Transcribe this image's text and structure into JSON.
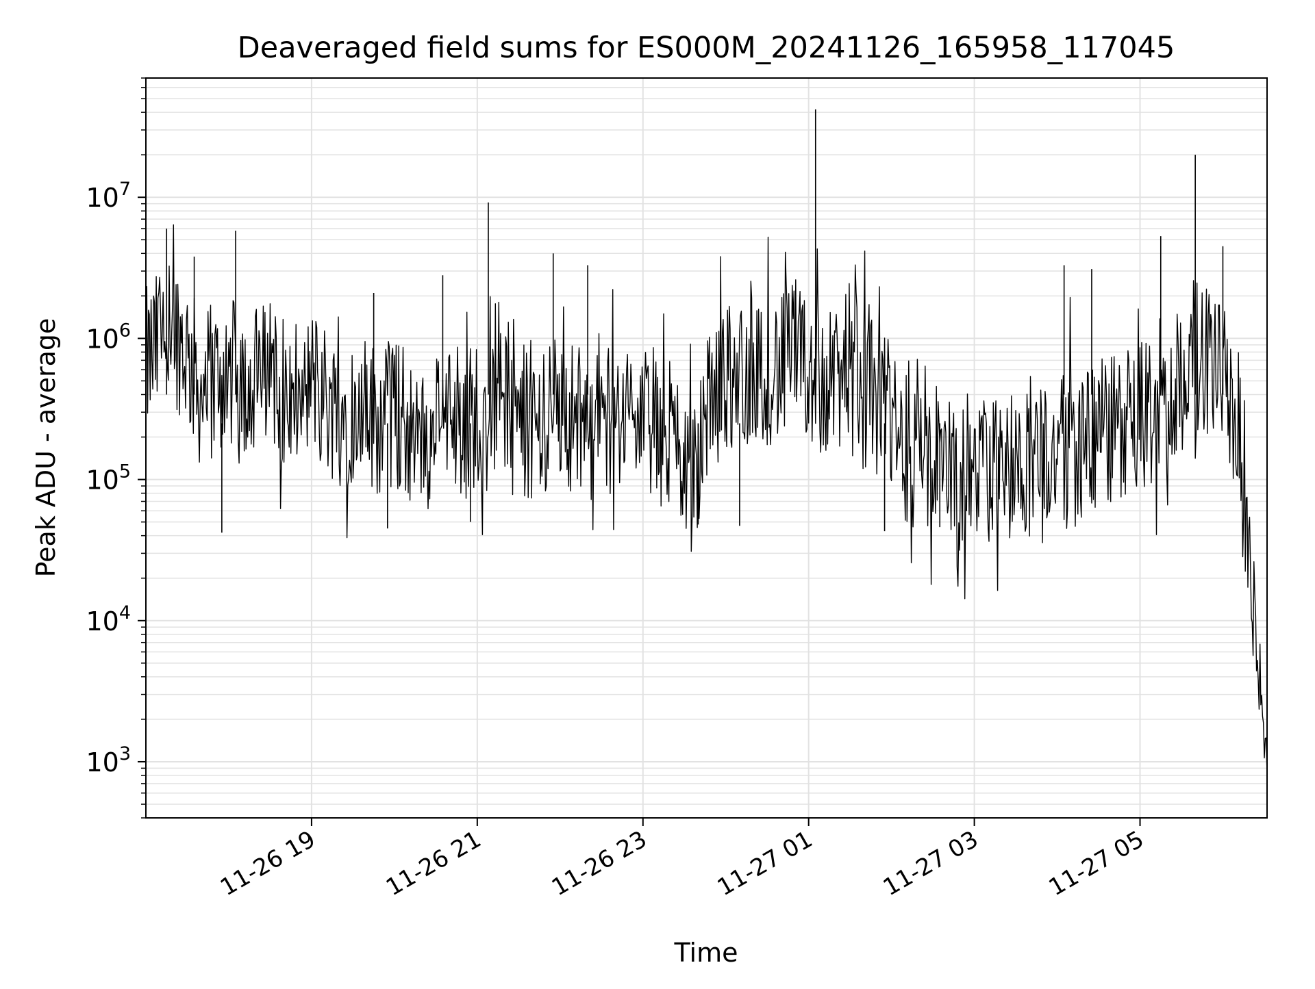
{
  "chart_data": {
    "type": "line",
    "title": "Deaveraged field sums for ES000M_20241126_165958_117045",
    "xlabel": "Time",
    "ylabel": "Peak ADU - average",
    "yscale": "log",
    "ylim": [
      400,
      70000000
    ],
    "xlim": [
      "2024-11-26 17:00",
      "2024-11-27 06:32"
    ],
    "grid": true,
    "x_ticks": [
      {
        "label": "11-26 19",
        "time": "2024-11-26 19:00"
      },
      {
        "label": "11-26 21",
        "time": "2024-11-26 21:00"
      },
      {
        "label": "11-26 23",
        "time": "2024-11-26 23:00"
      },
      {
        "label": "11-27 01",
        "time": "2024-11-27 01:00"
      },
      {
        "label": "11-27 03",
        "time": "2024-11-27 03:00"
      },
      {
        "label": "11-27 05",
        "time": "2024-11-27 05:00"
      }
    ],
    "y_ticks": [
      {
        "base": "10",
        "exp": "3",
        "value": 1000
      },
      {
        "base": "10",
        "exp": "4",
        "value": 10000
      },
      {
        "base": "10",
        "exp": "5",
        "value": 100000
      },
      {
        "base": "10",
        "exp": "6",
        "value": 1000000
      },
      {
        "base": "10",
        "exp": "7",
        "value": 10000000
      }
    ],
    "series": [
      {
        "color": "#000000",
        "x": [
          "2024-11-26 17:00",
          "2024-11-26 17:10",
          "2024-11-26 17:20",
          "2024-11-26 17:30",
          "2024-11-26 17:40",
          "2024-11-26 17:50",
          "2024-11-26 18:00",
          "2024-11-26 18:10",
          "2024-11-26 18:20",
          "2024-11-26 18:30",
          "2024-11-26 18:40",
          "2024-11-26 18:50",
          "2024-11-26 19:00",
          "2024-11-26 19:10",
          "2024-11-26 19:20",
          "2024-11-26 19:30",
          "2024-11-26 19:40",
          "2024-11-26 19:50",
          "2024-11-26 20:00",
          "2024-11-26 20:10",
          "2024-11-26 20:20",
          "2024-11-26 20:30",
          "2024-11-26 20:40",
          "2024-11-26 20:50",
          "2024-11-26 21:00",
          "2024-11-26 21:10",
          "2024-11-26 21:20",
          "2024-11-26 21:30",
          "2024-11-26 21:40",
          "2024-11-26 21:50",
          "2024-11-26 22:00",
          "2024-11-26 22:10",
          "2024-11-26 22:20",
          "2024-11-26 22:30",
          "2024-11-26 22:40",
          "2024-11-26 22:50",
          "2024-11-26 23:00",
          "2024-11-26 23:10",
          "2024-11-26 23:20",
          "2024-11-26 23:30",
          "2024-11-26 23:40",
          "2024-11-26 23:50",
          "2024-11-27 00:00",
          "2024-11-27 00:10",
          "2024-11-27 00:20",
          "2024-11-27 00:30",
          "2024-11-27 00:40",
          "2024-11-27 00:50",
          "2024-11-27 01:00",
          "2024-11-27 01:10",
          "2024-11-27 01:20",
          "2024-11-27 01:30",
          "2024-11-27 01:40",
          "2024-11-27 01:50",
          "2024-11-27 02:00",
          "2024-11-27 02:10",
          "2024-11-27 02:20",
          "2024-11-27 02:30",
          "2024-11-27 02:40",
          "2024-11-27 02:50",
          "2024-11-27 03:00",
          "2024-11-27 03:10",
          "2024-11-27 03:20",
          "2024-11-27 03:30",
          "2024-11-27 03:40",
          "2024-11-27 03:50",
          "2024-11-27 04:00",
          "2024-11-27 04:10",
          "2024-11-27 04:20",
          "2024-11-27 04:30",
          "2024-11-27 04:40",
          "2024-11-27 04:50",
          "2024-11-27 05:00",
          "2024-11-27 05:10",
          "2024-11-27 05:20",
          "2024-11-27 05:30",
          "2024-11-27 05:40",
          "2024-11-27 05:50",
          "2024-11-27 06:00",
          "2024-11-27 06:10",
          "2024-11-27 06:15",
          "2024-11-27 06:20",
          "2024-11-27 06:25",
          "2024-11-27 06:30",
          "2024-11-27 06:32"
        ],
        "y": [
          650000,
          900000,
          1200000,
          800000,
          400000,
          500000,
          600000,
          450000,
          500000,
          550000,
          400000,
          350000,
          500000,
          380000,
          300000,
          320000,
          300000,
          260000,
          280000,
          250000,
          230000,
          260000,
          270000,
          250000,
          300000,
          280000,
          300000,
          260000,
          250000,
          270000,
          300000,
          280000,
          260000,
          240000,
          260000,
          300000,
          250000,
          200000,
          180000,
          150000,
          120000,
          400000,
          500000,
          550000,
          600000,
          620000,
          600000,
          650000,
          600000,
          500000,
          450000,
          420000,
          400000,
          380000,
          250000,
          180000,
          150000,
          130000,
          120000,
          120000,
          110000,
          110000,
          120000,
          130000,
          140000,
          150000,
          150000,
          160000,
          170000,
          200000,
          220000,
          250000,
          280000,
          300000,
          350000,
          500000,
          800000,
          700000,
          500000,
          300000,
          100000,
          30000,
          5000,
          1500,
          800
        ],
        "spikes": [
          {
            "x": "2024-11-26 17:15",
            "y": 6000000
          },
          {
            "x": "2024-11-26 17:35",
            "y": 3800000
          },
          {
            "x": "2024-11-26 18:05",
            "y": 5800000
          },
          {
            "x": "2024-11-26 19:45",
            "y": 2100000
          },
          {
            "x": "2024-11-26 20:35",
            "y": 2800000
          },
          {
            "x": "2024-11-26 21:08",
            "y": 9200000
          },
          {
            "x": "2024-11-26 21:55",
            "y": 4000000
          },
          {
            "x": "2024-11-26 22:20",
            "y": 3300000
          },
          {
            "x": "2024-11-27 01:05",
            "y": 42000000
          },
          {
            "x": "2024-11-27 04:05",
            "y": 3300000
          },
          {
            "x": "2024-11-27 04:25",
            "y": 3100000
          },
          {
            "x": "2024-11-27 05:15",
            "y": 5300000
          },
          {
            "x": "2024-11-27 05:40",
            "y": 20000000
          },
          {
            "x": "2024-11-27 06:00",
            "y": 4500000
          }
        ],
        "dips": [
          {
            "x": "2024-11-26 17:55",
            "y": 42000
          },
          {
            "x": "2024-11-26 19:55",
            "y": 45000
          },
          {
            "x": "2024-11-26 20:55",
            "y": 50000
          },
          {
            "x": "2024-11-26 23:40",
            "y": 48000
          },
          {
            "x": "2024-11-27 00:10",
            "y": 47000
          },
          {
            "x": "2024-11-27 01:55",
            "y": 43000
          },
          {
            "x": "2024-11-27 02:35",
            "y": 46000
          }
        ]
      }
    ]
  }
}
